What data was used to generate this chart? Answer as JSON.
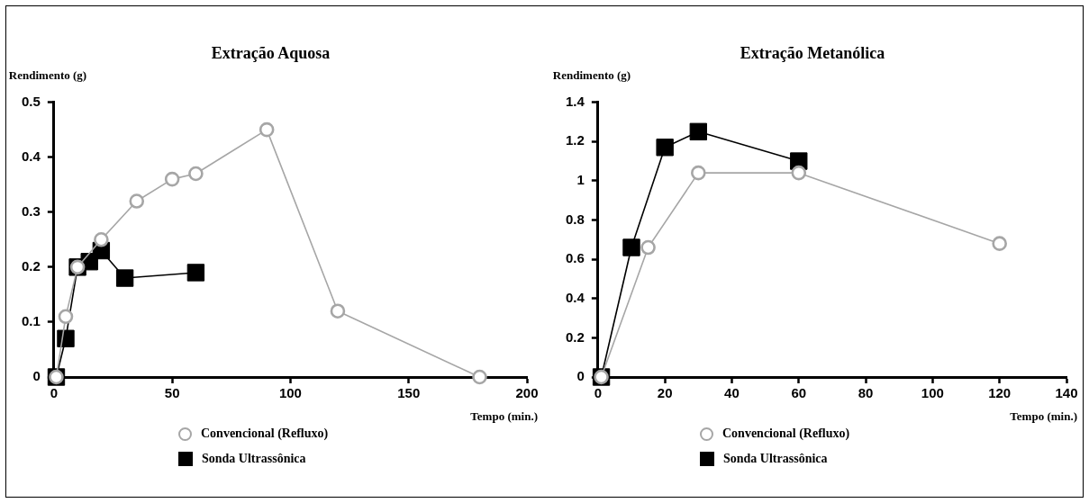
{
  "chart_data": [
    {
      "type": "line",
      "title": "Extração Aquosa",
      "xlabel": "Tempo (min.)",
      "ylabel": "Rendimento (g)",
      "xlim": [
        0,
        200
      ],
      "xticks": [
        0,
        50,
        100,
        150,
        200
      ],
      "ylim": [
        0,
        0.5
      ],
      "yticks": [
        0,
        0.1,
        0.2,
        0.3,
        0.4,
        0.5
      ],
      "grid": false,
      "legend": "bottom",
      "series": [
        {
          "name": "Convencional (Refluxo)",
          "color": "#a6a6a6",
          "marker": "circle",
          "x": [
            1,
            5,
            10,
            20,
            35,
            50,
            60,
            90,
            120,
            180
          ],
          "values": [
            0,
            0.11,
            0.2,
            0.25,
            0.32,
            0.36,
            0.37,
            0.45,
            0.12,
            0
          ]
        },
        {
          "name": "Sonda Ultrassônica",
          "color": "#000000",
          "marker": "square",
          "x": [
            1,
            5,
            10,
            15,
            20,
            30,
            60
          ],
          "values": [
            0,
            0.07,
            0.2,
            0.21,
            0.23,
            0.18,
            0.19
          ]
        }
      ]
    },
    {
      "type": "line",
      "title": "Extração Metanólica",
      "xlabel": "Tempo (min.)",
      "ylabel": "Rendimento (g)",
      "xlim": [
        0,
        140
      ],
      "xticks": [
        0,
        20,
        40,
        60,
        80,
        100,
        120,
        140
      ],
      "ylim": [
        0,
        1.4
      ],
      "yticks": [
        0,
        0.2,
        0.4,
        0.6,
        0.8,
        1,
        1.2,
        1.4
      ],
      "grid": false,
      "legend": "bottom",
      "series": [
        {
          "name": "Convencional (Refluxo)",
          "color": "#a6a6a6",
          "marker": "circle",
          "x": [
            1,
            15,
            30,
            60,
            120
          ],
          "values": [
            0,
            0.66,
            1.04,
            1.04,
            0.68
          ]
        },
        {
          "name": "Sonda Ultrassônica",
          "color": "#000000",
          "marker": "square",
          "x": [
            1,
            10,
            20,
            30,
            60
          ],
          "values": [
            0,
            0.66,
            1.17,
            1.25,
            1.1
          ]
        }
      ]
    }
  ]
}
